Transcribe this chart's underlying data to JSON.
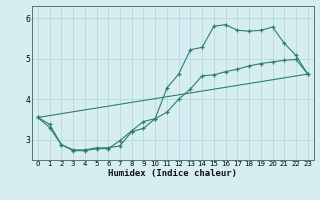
{
  "title": "",
  "xlabel": "Humidex (Indice chaleur)",
  "bg_color": "#d6eef2",
  "grid_color": "#b8d8dc",
  "line_color": "#2e7d6e",
  "xlim": [
    -0.5,
    23.5
  ],
  "ylim": [
    2.5,
    6.3
  ],
  "yticks": [
    3,
    4,
    5,
    6
  ],
  "xticks": [
    0,
    1,
    2,
    3,
    4,
    5,
    6,
    7,
    8,
    9,
    10,
    11,
    12,
    13,
    14,
    15,
    16,
    17,
    18,
    19,
    20,
    21,
    22,
    23
  ],
  "line1_x": [
    0,
    1,
    2,
    3,
    4,
    5,
    6,
    7,
    8,
    9,
    10,
    11,
    12,
    13,
    14,
    15,
    16,
    17,
    18,
    19,
    20,
    21,
    22,
    23
  ],
  "line1_y": [
    3.55,
    3.3,
    2.88,
    2.75,
    2.75,
    2.8,
    2.8,
    2.85,
    3.2,
    3.28,
    3.52,
    4.28,
    4.62,
    5.22,
    5.28,
    5.8,
    5.84,
    5.7,
    5.68,
    5.7,
    5.78,
    5.38,
    5.08,
    4.62
  ],
  "line2_x": [
    0,
    1,
    2,
    3,
    4,
    5,
    6,
    7,
    8,
    9,
    10,
    11,
    12,
    13,
    14,
    15,
    16,
    17,
    18,
    19,
    20,
    21,
    22,
    23
  ],
  "line2_y": [
    3.55,
    3.38,
    2.88,
    2.73,
    2.73,
    2.78,
    2.78,
    2.98,
    3.22,
    3.45,
    3.52,
    3.68,
    4.0,
    4.25,
    4.58,
    4.6,
    4.68,
    4.74,
    4.82,
    4.88,
    4.92,
    4.96,
    4.98,
    4.62
  ],
  "line3_x": [
    0,
    23
  ],
  "line3_y": [
    3.55,
    4.62
  ]
}
